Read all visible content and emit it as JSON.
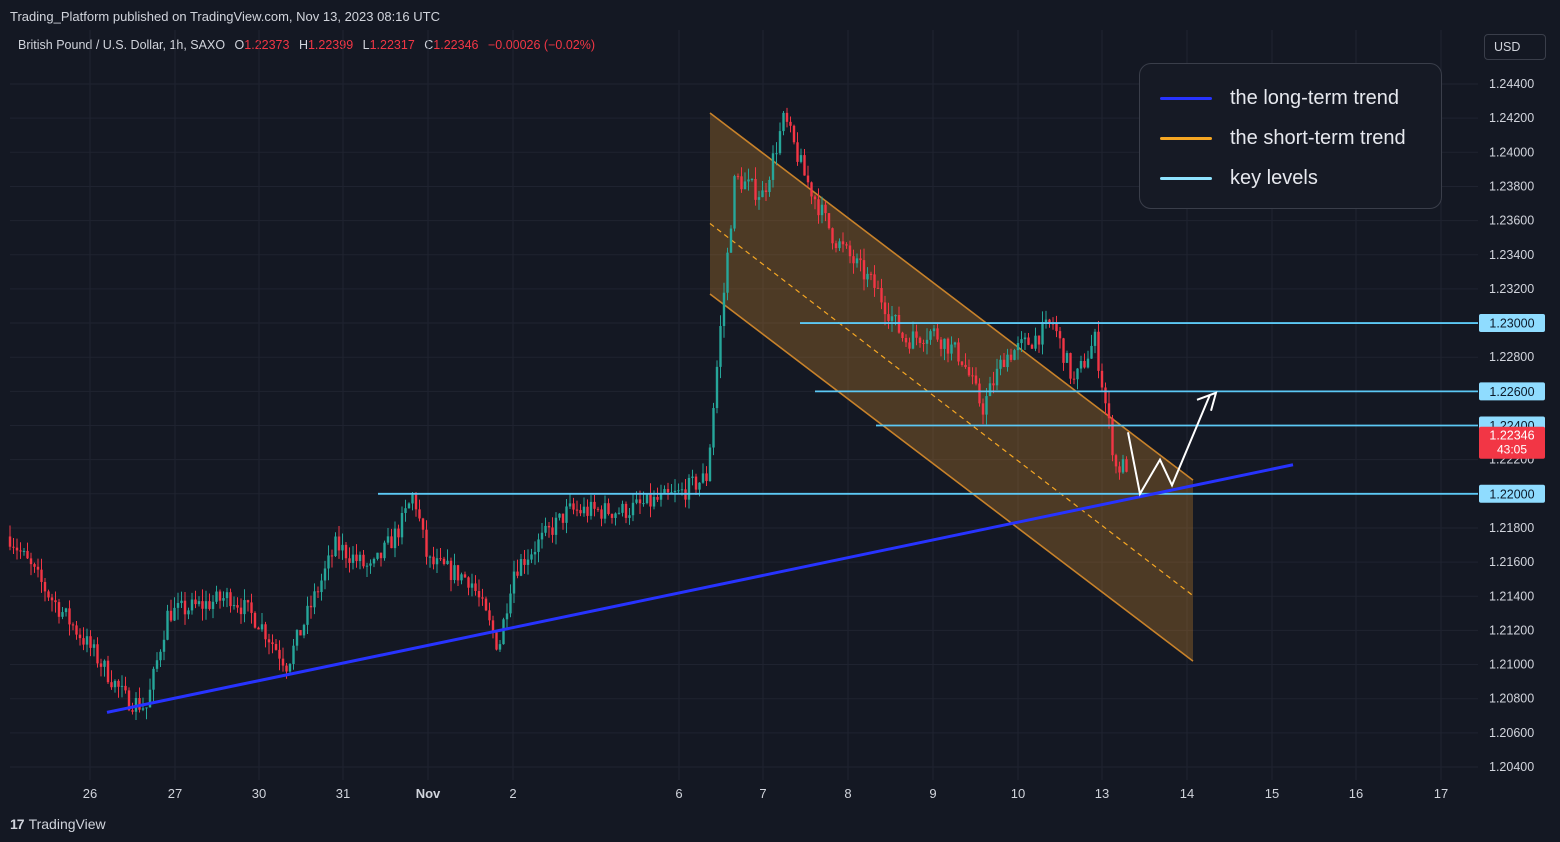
{
  "header": {
    "published_text": "Trading_Platform published on TradingView.com, Nov 13, 2023 08:16 UTC",
    "symbol": "British Pound / U.S. Dollar, 1h, SAXO",
    "ohlc": {
      "o_label": "O",
      "o_value": "1.22373",
      "h_label": "H",
      "h_value": "1.22399",
      "l_label": "L",
      "l_value": "1.22317",
      "c_label": "C",
      "c_value": "1.22346",
      "change": "−0.00026 (−0.02%)"
    }
  },
  "currency_button": "USD",
  "legend": {
    "items": [
      {
        "label": "the long-term trend",
        "color": "#2733ff"
      },
      {
        "label": "the short-term trend",
        "color": "#f5a623"
      },
      {
        "label": "key levels",
        "color": "#8fe3ff"
      }
    ]
  },
  "footer": {
    "logo": "17",
    "brand": "TradingView"
  },
  "colors": {
    "up": "#26a69a",
    "down": "#f23645",
    "level": "#5cc8f5",
    "trend_long": "#2733ff",
    "channel": "#c8822a"
  },
  "chart_data": {
    "type": "candlestick",
    "symbol": "GBPUSD 1h",
    "x_tick_labels": [
      "26",
      "27",
      "30",
      "31",
      "Nov",
      "2",
      "6",
      "7",
      "8",
      "9",
      "10",
      "13",
      "14",
      "15",
      "16",
      "17"
    ],
    "y_tick_labels": [
      "1.24400",
      "1.24200",
      "1.24000",
      "1.23800",
      "1.23600",
      "1.23400",
      "1.23200",
      "1.23000",
      "1.22800",
      "1.22600",
      "1.22400",
      "1.22200",
      "1.22000",
      "1.21800",
      "1.21600",
      "1.21400",
      "1.21200",
      "1.21000",
      "1.20800",
      "1.20600",
      "1.20400"
    ],
    "ylim": [
      1.2033,
      1.2451
    ],
    "price_path": [
      [
        "Oct 25 12:00",
        1.2175
      ],
      [
        "Oct 25 18:00",
        1.214
      ],
      [
        "Oct 26 00:00",
        1.211
      ],
      [
        "Oct 26 10:00",
        1.208
      ],
      [
        "Oct 26 16:00",
        1.2075
      ],
      [
        "Oct 26 22:00",
        1.213
      ],
      [
        "Oct 27 08:00",
        1.2135
      ],
      [
        "Oct 27 16:00",
        1.214
      ],
      [
        "Oct 30 00:00",
        1.2125
      ],
      [
        "Oct 30 08:00",
        1.21
      ],
      [
        "Oct 30 16:00",
        1.214
      ],
      [
        "Oct 30 22:00",
        1.217
      ],
      [
        "Oct 31 08:00",
        1.2155
      ],
      [
        "Oct 31 16:00",
        1.218
      ],
      [
        "Oct 31 20:00",
        1.22
      ],
      [
        "Nov 01 00:00",
        1.216
      ],
      [
        "Nov 01 12:00",
        1.215
      ],
      [
        "Nov 01 20:00",
        1.211
      ],
      [
        "Nov 02 00:00",
        1.2155
      ],
      [
        "Nov 02 08:00",
        1.219
      ],
      [
        "Nov 02 16:00",
        1.219
      ],
      [
        "Nov 03 00:00",
        1.22
      ],
      [
        "Nov 03 08:00",
        1.221
      ],
      [
        "Nov 03 12:00",
        1.23
      ],
      [
        "Nov 03 16:00",
        1.2385
      ],
      [
        "Nov 06 00:00",
        1.2375
      ],
      [
        "Nov 06 06:00",
        1.242
      ],
      [
        "Nov 06 12:00",
        1.2385
      ],
      [
        "Nov 06 20:00",
        1.235
      ],
      [
        "Nov 07 08:00",
        1.232
      ],
      [
        "Nov 07 16:00",
        1.229
      ],
      [
        "Nov 08 00:00",
        1.2295
      ],
      [
        "Nov 08 08:00",
        1.228
      ],
      [
        "Nov 08 14:00",
        1.225
      ],
      [
        "Nov 08 20:00",
        1.228
      ],
      [
        "Nov 09 04:00",
        1.229
      ],
      [
        "Nov 09 10:00",
        1.23
      ],
      [
        "Nov 09 16:00",
        1.2265
      ],
      [
        "Nov 09 22:00",
        1.229
      ],
      [
        "Nov 10 04:00",
        1.2215
      ],
      [
        "Nov 10 12:00",
        1.222
      ],
      [
        "Nov 10 20:00",
        1.2205
      ],
      [
        "Nov 13 00:00",
        1.2225
      ],
      [
        "Nov 13 08:00",
        1.2235
      ]
    ],
    "last_price": "1.22346",
    "countdown": "43:05",
    "key_levels": [
      {
        "price": 1.23,
        "label": "1.23000"
      },
      {
        "price": 1.226,
        "label": "1.22600"
      },
      {
        "price": 1.224,
        "label": "1.22400"
      },
      {
        "price": 1.22,
        "label": "1.22000"
      }
    ],
    "long_term_trend": {
      "from": [
        "Oct 26",
        1.2072
      ],
      "to": [
        "Nov 15",
        1.2217
      ]
    },
    "short_term_channel": {
      "upper": {
        "from": [
          "Nov 6",
          1.2423
        ],
        "to": [
          "Nov 14",
          1.2208
        ]
      },
      "lower": {
        "from": [
          "Nov 6",
          1.2317
        ],
        "to": [
          "Nov 14",
          1.2102
        ]
      }
    },
    "projection": [
      [
        "Nov 13",
        1.2236
      ],
      [
        "Nov 13",
        1.22
      ],
      [
        "Nov 13",
        1.222
      ],
      [
        "Nov 13",
        1.2205
      ],
      [
        "Nov 14",
        1.2258
      ]
    ]
  }
}
